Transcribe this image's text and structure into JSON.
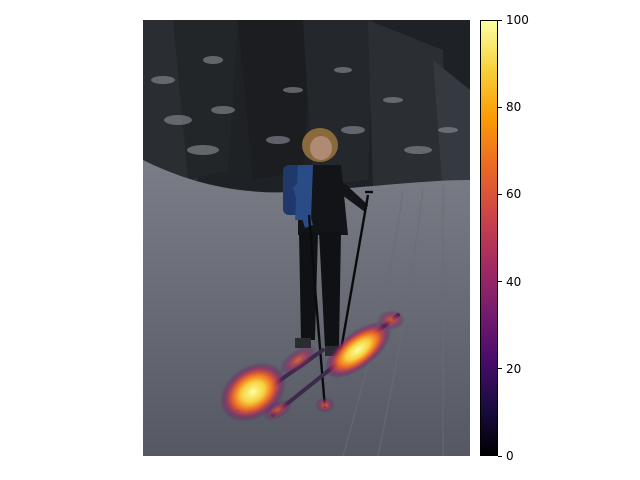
{
  "image": {
    "description_kind": "photo-with-heatmap-overlay"
  },
  "colorbar": {
    "colormap": "inferno",
    "min": 0,
    "max": 100,
    "ticks": [
      "0",
      "20",
      "40",
      "60",
      "80",
      "100"
    ],
    "stops": [
      "#000004",
      "#1b0c41",
      "#4a0c6b",
      "#781c6d",
      "#a52c60",
      "#cf4446",
      "#ed6925",
      "#fb9b06",
      "#f7d13d",
      "#fcffa4"
    ]
  }
}
